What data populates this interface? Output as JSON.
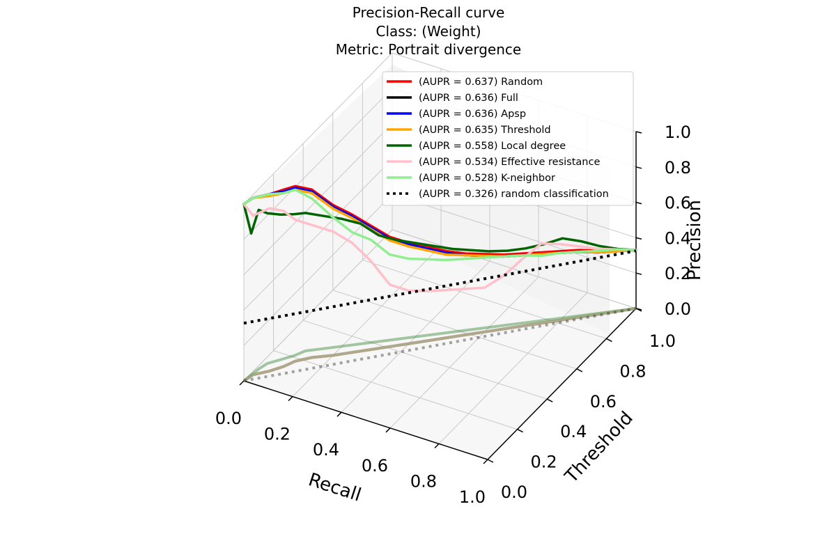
{
  "chart_data": {
    "type": "line",
    "projection": "3d",
    "title": [
      "Precision-Recall curve",
      "Class: (Weight)",
      "Metric: Portrait divergence"
    ],
    "xlabel": "Recall",
    "ylabel": "Threshold",
    "zlabel": "Precision",
    "xlim": [
      0,
      1
    ],
    "ylim": [
      0,
      1
    ],
    "zlim": [
      0,
      1
    ],
    "x_ticks": [
      "0.0",
      "0.2",
      "0.4",
      "0.6",
      "0.8",
      "1.0"
    ],
    "y_ticks": [
      "0.0",
      "0.2",
      "0.4",
      "0.6",
      "0.8",
      "1.0"
    ],
    "z_ticks": [
      "0.0",
      "0.2",
      "0.4",
      "0.6",
      "0.8",
      "1.0"
    ],
    "grid": true,
    "legend_position": "top-right",
    "shadow_projection": "precision-recall curves projected on the floor (threshold axis) at reduced opacity",
    "series": [
      {
        "name": "(AUPR = 0.637) Random",
        "color": "#ff0000",
        "style": "solid",
        "recall": [
          0.0,
          0.01,
          0.05,
          0.08,
          0.1,
          0.14,
          0.2,
          0.25,
          0.3,
          0.35,
          0.4,
          0.45,
          0.5,
          0.55,
          0.6,
          0.65,
          0.7,
          0.75,
          0.8,
          0.85,
          0.9,
          0.95,
          1.0
        ],
        "precision": [
          1.0,
          1.0,
          1.0,
          1.0,
          0.99,
          0.95,
          0.85,
          0.78,
          0.7,
          0.62,
          0.57,
          0.53,
          0.49,
          0.46,
          0.44,
          0.42,
          0.41,
          0.4,
          0.39,
          0.38,
          0.36,
          0.35,
          0.33
        ]
      },
      {
        "name": "(AUPR = 0.636) Full",
        "color": "#000000",
        "style": "solid",
        "recall": [
          0.0,
          0.01,
          0.05,
          0.08,
          0.1,
          0.14,
          0.2,
          0.25,
          0.3,
          0.35,
          0.4,
          0.45,
          0.5,
          0.55,
          0.6,
          0.65,
          0.7,
          0.75,
          0.8,
          0.85,
          0.9,
          0.95,
          1.0
        ],
        "precision": [
          1.0,
          1.0,
          1.0,
          0.99,
          0.98,
          0.94,
          0.84,
          0.77,
          0.69,
          0.61,
          0.56,
          0.52,
          0.48,
          0.45,
          0.43,
          0.41,
          0.4,
          0.39,
          0.38,
          0.37,
          0.35,
          0.34,
          0.33
        ]
      },
      {
        "name": "(AUPR = 0.636) Apsp",
        "color": "#0000ff",
        "style": "solid",
        "recall": [
          0.0,
          0.01,
          0.05,
          0.08,
          0.1,
          0.14,
          0.2,
          0.25,
          0.3,
          0.35,
          0.4,
          0.45,
          0.5,
          0.55,
          0.6,
          0.65,
          0.7,
          0.75,
          0.8,
          0.85,
          0.9,
          0.95,
          1.0
        ],
        "precision": [
          1.0,
          1.0,
          1.0,
          0.99,
          0.98,
          0.94,
          0.84,
          0.77,
          0.69,
          0.61,
          0.56,
          0.52,
          0.48,
          0.45,
          0.43,
          0.41,
          0.4,
          0.39,
          0.38,
          0.37,
          0.35,
          0.34,
          0.33
        ]
      },
      {
        "name": "(AUPR = 0.635) Threshold",
        "color": "#ffa500",
        "style": "solid",
        "recall": [
          0.0,
          0.01,
          0.05,
          0.08,
          0.1,
          0.14,
          0.2,
          0.25,
          0.3,
          0.35,
          0.4,
          0.45,
          0.5,
          0.55,
          0.6,
          0.65,
          0.7,
          0.75,
          0.8,
          0.85,
          0.9,
          0.95,
          1.0
        ],
        "precision": [
          1.0,
          1.0,
          0.99,
          0.98,
          0.97,
          0.93,
          0.83,
          0.76,
          0.68,
          0.6,
          0.55,
          0.51,
          0.47,
          0.45,
          0.43,
          0.41,
          0.4,
          0.39,
          0.38,
          0.37,
          0.35,
          0.34,
          0.33
        ]
      },
      {
        "name": "(AUPR = 0.558) Local degree",
        "color": "#006400",
        "style": "solid",
        "recall": [
          0.0,
          0.005,
          0.01,
          0.02,
          0.05,
          0.08,
          0.1,
          0.15,
          0.2,
          0.25,
          0.3,
          0.35,
          0.4,
          0.45,
          0.5,
          0.55,
          0.6,
          0.65,
          0.7,
          0.75,
          0.8,
          0.85,
          0.9,
          0.95,
          1.0
        ],
        "precision": [
          1.0,
          0.8,
          0.9,
          0.85,
          0.82,
          0.8,
          0.78,
          0.75,
          0.72,
          0.68,
          0.6,
          0.56,
          0.53,
          0.5,
          0.47,
          0.45,
          0.43,
          0.42,
          0.42,
          0.43,
          0.45,
          0.42,
          0.38,
          0.35,
          0.33
        ]
      },
      {
        "name": "(AUPR = 0.534) Effective resistance",
        "color": "#ffc0cb",
        "style": "solid",
        "recall": [
          0.0,
          0.01,
          0.05,
          0.08,
          0.1,
          0.14,
          0.2,
          0.25,
          0.3,
          0.35,
          0.4,
          0.45,
          0.5,
          0.55,
          0.6,
          0.65,
          0.7,
          0.75,
          0.8,
          0.85,
          0.9,
          0.95,
          1.0
        ],
        "precision": [
          1.0,
          0.9,
          0.92,
          0.88,
          0.8,
          0.75,
          0.7,
          0.62,
          0.5,
          0.35,
          0.3,
          0.28,
          0.27,
          0.26,
          0.25,
          0.3,
          0.38,
          0.45,
          0.43,
          0.4,
          0.37,
          0.35,
          0.33
        ]
      },
      {
        "name": "(AUPR = 0.528) K-neighbor",
        "color": "#90ee90",
        "style": "solid",
        "recall": [
          0.0,
          0.01,
          0.05,
          0.08,
          0.1,
          0.14,
          0.2,
          0.25,
          0.3,
          0.35,
          0.4,
          0.45,
          0.5,
          0.55,
          0.6,
          0.65,
          0.7,
          0.75,
          0.8,
          0.85,
          0.9,
          0.95,
          1.0
        ],
        "precision": [
          1.0,
          1.0,
          1.0,
          0.98,
          0.97,
          0.9,
          0.78,
          0.68,
          0.62,
          0.52,
          0.48,
          0.46,
          0.44,
          0.43,
          0.42,
          0.41,
          0.4,
          0.38,
          0.38,
          0.37,
          0.36,
          0.35,
          0.33
        ]
      },
      {
        "name": "(AUPR = 0.326) random classification",
        "color": "#000000",
        "style": "dotted",
        "recall": [
          0.0,
          1.0
        ],
        "precision": [
          0.326,
          0.326
        ]
      }
    ]
  }
}
